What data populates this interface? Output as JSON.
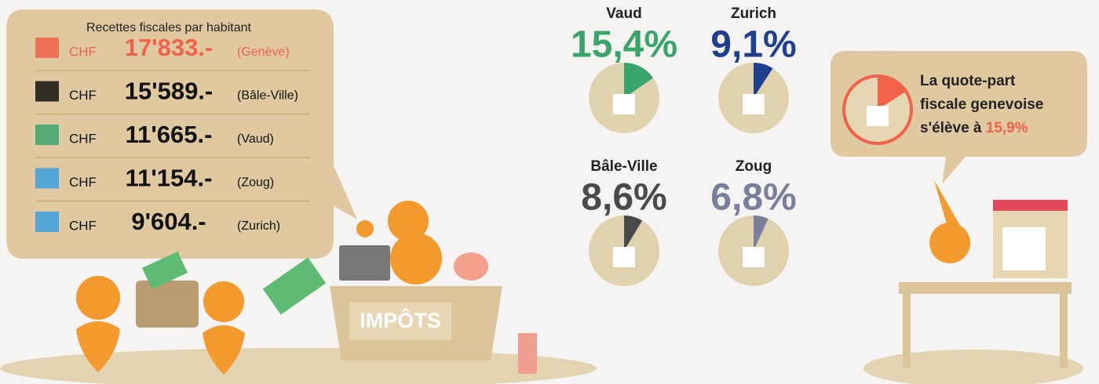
{
  "revenue": {
    "title": "Recettes fiscales par habitant",
    "rows": [
      {
        "currency": "CHF",
        "amount": "17'833.-",
        "canton": "(Genève)"
      },
      {
        "currency": "CHF",
        "amount": "15'589.-",
        "canton": "(Bâle-Ville)"
      },
      {
        "currency": "CHF",
        "amount": "11'665.-",
        "canton": "(Vaud)"
      },
      {
        "currency": "CHF",
        "amount": "11'154.-",
        "canton": "(Zoug)"
      },
      {
        "currency": "CHF",
        "amount": "9'604.-",
        "canton": "(Zurich)"
      }
    ]
  },
  "pies": [
    {
      "name": "Vaud",
      "value": 15.4,
      "label": "15,4%",
      "color": "#3aa56b"
    },
    {
      "name": "Zurich",
      "value": 9.1,
      "label": "9,1%",
      "color": "#1f3f8f"
    },
    {
      "name": "Bâle-Ville",
      "value": 8.6,
      "label": "8,6%",
      "color": "#4a4a4a"
    },
    {
      "name": "Zoug",
      "value": 6.8,
      "label": "6,8%",
      "color": "#7a7f9e"
    }
  ],
  "geneva": {
    "text_1": "La quote-part",
    "text_2": "fiscale genevoise",
    "text_3": "s'élève à",
    "value": 15.9,
    "label": "15,9%",
    "color": "#f0634a"
  },
  "desk": {
    "sign": "IMPÔTS"
  }
}
